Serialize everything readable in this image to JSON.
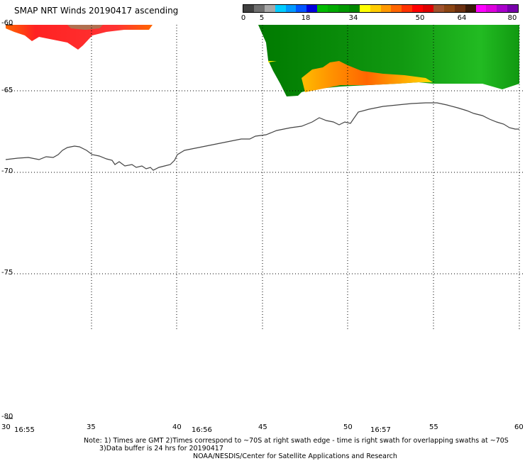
{
  "title": "SMAP NRT Winds 20190417 ascending",
  "scale": {
    "labels": [
      "0",
      "5",
      "18",
      "34",
      "50",
      "64",
      "80"
    ],
    "segments": [
      "#404040",
      "#707070",
      "#a8a8a8",
      "#00ccff",
      "#0099ff",
      "#0055ff",
      "#0000dd",
      "#00bb00",
      "#00aa00",
      "#009900",
      "#008800",
      "#ffff00",
      "#ffcc00",
      "#ff9900",
      "#ff6600",
      "#ff3300",
      "#ff0000",
      "#dd0000",
      "#a0522d",
      "#8b4513",
      "#6b3010",
      "#3a1a08",
      "#ff00ff",
      "#dd00dd",
      "#aa00cc",
      "#7700aa"
    ]
  },
  "axes": {
    "lat_labels": [
      "-60",
      "-65",
      "-70",
      "-75",
      "-80"
    ],
    "lon_labels": [
      "30",
      "35",
      "40",
      "45",
      "50",
      "55",
      "60"
    ],
    "time_labels": [
      "16:55",
      "16:56",
      "16:57"
    ]
  },
  "notes": {
    "line1": "Note: 1) Times are GMT 2)Times correspond to ~70S at right swath edge - time is right swath for overlapping swaths at ~70S",
    "line2": "3)Data buffer is 24 hrs for 20190417",
    "line3": "NOAA/NESDIS/Center for Satellite Applications and Research"
  },
  "colors": {
    "swath_green_dark": "#007a00",
    "swath_green_light": "#22cc22",
    "wind_yellow": "#ffee00",
    "wind_orange": "#ff8800",
    "wind_red": "#ff2222",
    "wind_brown": "#b07050"
  }
}
